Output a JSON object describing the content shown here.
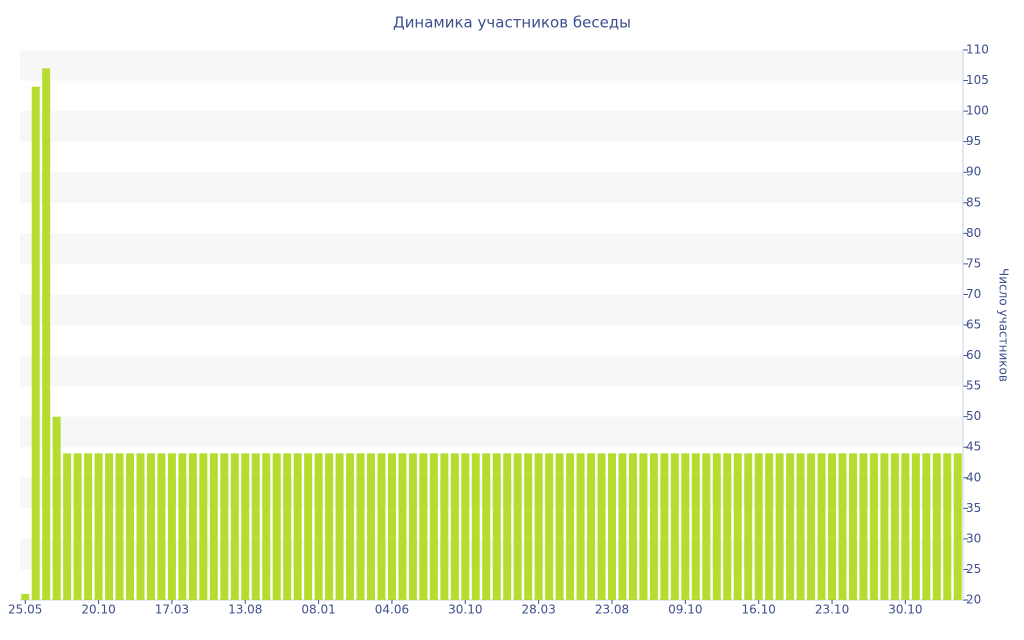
{
  "chart_data": {
    "type": "bar",
    "title": "Динамика участников беседы",
    "y_label": "Число участников",
    "categories": [
      "25.05",
      null,
      null,
      null,
      null,
      null,
      null,
      "20.10",
      null,
      null,
      null,
      null,
      null,
      null,
      "17.03",
      null,
      null,
      null,
      null,
      null,
      null,
      "13.08",
      null,
      null,
      null,
      null,
      null,
      null,
      "08.01",
      null,
      null,
      null,
      null,
      null,
      null,
      "04.06",
      null,
      null,
      null,
      null,
      null,
      null,
      "30.10",
      null,
      null,
      null,
      null,
      null,
      null,
      "28.03",
      null,
      null,
      null,
      null,
      null,
      null,
      "23.08",
      null,
      null,
      null,
      null,
      null,
      null,
      "09.10",
      null,
      null,
      null,
      null,
      null,
      null,
      "16.10",
      null,
      null,
      null,
      null,
      null,
      null,
      "23.10",
      null,
      null,
      null,
      null,
      null,
      null,
      "30.10",
      null,
      null,
      null,
      null,
      null
    ],
    "values": [
      21,
      104,
      107,
      50,
      44,
      44,
      44,
      44,
      44,
      44,
      44,
      44,
      44,
      44,
      44,
      44,
      44,
      44,
      44,
      44,
      44,
      44,
      44,
      44,
      44,
      44,
      44,
      44,
      44,
      44,
      44,
      44,
      44,
      44,
      44,
      44,
      44,
      44,
      44,
      44,
      44,
      44,
      44,
      44,
      44,
      44,
      44,
      44,
      44,
      44,
      44,
      44,
      44,
      44,
      44,
      44,
      44,
      44,
      44,
      44,
      44,
      44,
      44,
      44,
      44,
      44,
      44,
      44,
      44,
      44,
      44,
      44,
      44,
      44,
      44,
      44,
      44,
      44,
      44,
      44,
      44,
      44,
      44,
      44,
      44,
      44,
      44,
      44,
      44,
      44
    ],
    "color": "#b5dd2f",
    "ylim": [
      20,
      110
    ],
    "yticks": [
      20,
      25,
      30,
      35,
      40,
      45,
      50,
      55,
      60,
      65,
      70,
      75,
      80,
      85,
      90,
      95,
      100,
      105,
      110
    ],
    "y_axis_side": "right",
    "grid_bands": true
  }
}
